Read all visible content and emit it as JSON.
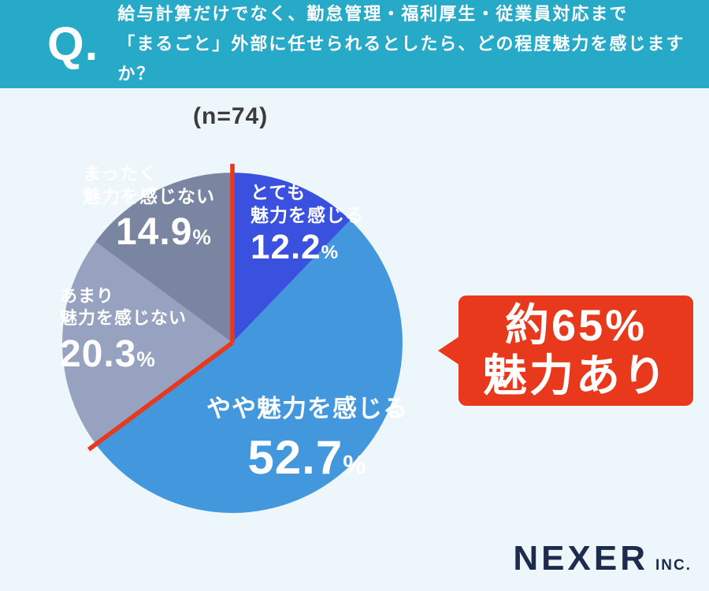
{
  "header": {
    "q_label": "Q.",
    "line1": "給与計算だけでなく、勤怠管理・福利厚生・従業員対応まで",
    "line2": "「まるごと」外部に任せられるとしたら、どの程度魅力を感じますか？",
    "bg_color": "#27a9c8"
  },
  "sample_label": "(n=74)",
  "chart_data": {
    "type": "pie",
    "title": "給与計算だけでなく、勤怠管理・福利厚生・従業員対応まで「まるごと」外部に任せられるとしたら、どの程度魅力を感じますか？",
    "n": 74,
    "start_angle_deg": 0,
    "direction": "clockwise",
    "percent_sign": "%",
    "slices": [
      {
        "label": "とても魅力を感じる",
        "label_lines": [
          "とても",
          "魅力を感じる"
        ],
        "value": 12.2,
        "pct_text": "12.2",
        "color": "#3a50df"
      },
      {
        "label": "やや魅力を感じる",
        "label_lines": [
          "やや魅力を感じる"
        ],
        "value": 52.7,
        "pct_text": "52.7",
        "color": "#4397dd"
      },
      {
        "label": "あまり魅力を感じない",
        "label_lines": [
          "あまり",
          "魅力を感じない"
        ],
        "value": 20.3,
        "pct_text": "20.3",
        "color": "#97a2c1"
      },
      {
        "label": "まったく魅力を感じない",
        "label_lines": [
          "まったく",
          "魅力を感じない"
        ],
        "value": 14.9,
        "pct_text": "14.9",
        "color": "#7a86a1"
      }
    ],
    "highlight": {
      "slices": [
        "とても魅力を感じる",
        "やや魅力を感じる"
      ],
      "total_pct": 64.9,
      "color": "#e8391d"
    }
  },
  "callout": {
    "line1": "約65%",
    "line2": "魅力あり",
    "bg_color": "#e8391d"
  },
  "logo": {
    "name": "NEXER",
    "suffix": "INC."
  }
}
